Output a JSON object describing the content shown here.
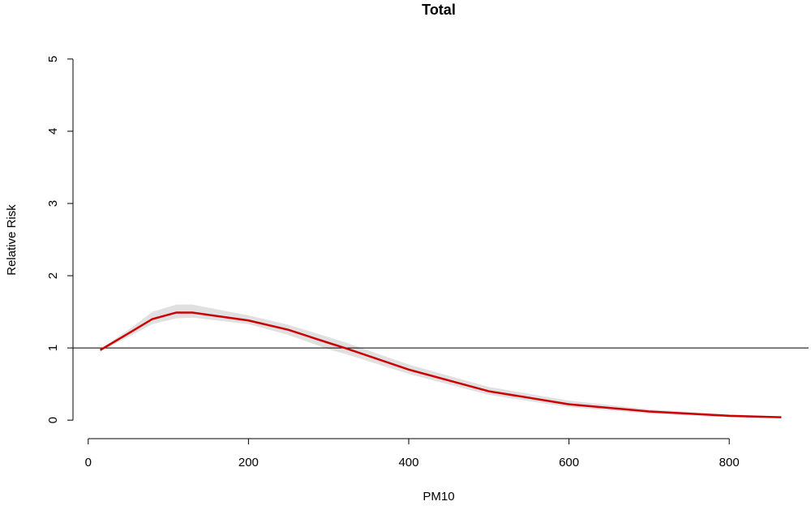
{
  "chart_data": {
    "type": "line",
    "title": "Total",
    "x_label": "PM10",
    "y_label": "Relative Risk",
    "x": [
      15,
      50,
      80,
      110,
      130,
      200,
      250,
      300,
      320,
      400,
      500,
      600,
      700,
      800,
      865
    ],
    "series": [
      {
        "color": "#cc0000",
        "values": [
          0.97,
          1.2,
          1.4,
          1.49,
          1.49,
          1.38,
          1.25,
          1.07,
          1.0,
          0.7,
          0.4,
          0.22,
          0.12,
          0.06,
          0.04
        ]
      }
    ],
    "band": {
      "color": "#e0e0e0",
      "lower": [
        0.96,
        1.15,
        1.33,
        1.41,
        1.42,
        1.33,
        1.18,
        0.98,
        0.92,
        0.64,
        0.35,
        0.18,
        0.09,
        0.04,
        0.03
      ],
      "upper": [
        0.98,
        1.25,
        1.5,
        1.6,
        1.6,
        1.45,
        1.32,
        1.15,
        1.08,
        0.77,
        0.46,
        0.27,
        0.15,
        0.08,
        0.05
      ]
    },
    "reference_line": 1,
    "xlim": [
      -19,
      899
    ],
    "ylim": [
      -0.2,
      5.2
    ],
    "xticks": [
      0,
      200,
      400,
      600,
      800
    ],
    "yticks": [
      0,
      1,
      2,
      3,
      4,
      5
    ]
  }
}
